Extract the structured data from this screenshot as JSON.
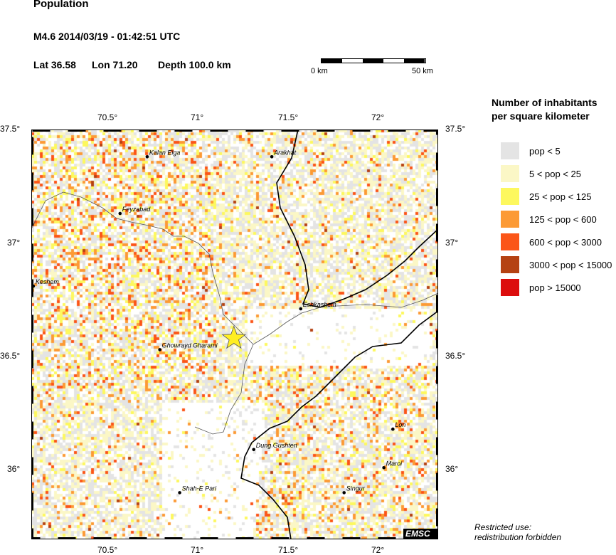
{
  "header": {
    "title": "Population",
    "event": "M4.6  2014/03/19 - 01:42:51 UTC",
    "lat": "Lat 36.58",
    "lon": "Lon  71.20",
    "depth": "Depth 100.0 km"
  },
  "scale_bar": {
    "start": "0 km",
    "end": "50 km"
  },
  "axes": {
    "lon_ticks": [
      "70.5°",
      "71°",
      "71.5°",
      "72°"
    ],
    "lat_ticks": [
      "37.5°",
      "37°",
      "36.5°",
      "36°"
    ]
  },
  "epicenter": {
    "lat": 36.58,
    "lon": 71.2,
    "color": "#ffee22"
  },
  "cities": [
    {
      "name": "Kalan Elga",
      "lon": 70.72,
      "lat": 37.38
    },
    {
      "name": "Arakhat",
      "lon": 71.41,
      "lat": 37.38
    },
    {
      "name": "Feyzabad",
      "lon": 70.57,
      "lat": 37.13
    },
    {
      "name": "Keshem",
      "lon": 70.09,
      "lat": 36.81
    },
    {
      "name": "Eshkashem",
      "lon": 71.57,
      "lat": 36.71
    },
    {
      "name": "Ghowrayd Gharami",
      "lon": 70.79,
      "lat": 36.53
    },
    {
      "name": "Dung Gushten",
      "lon": 71.31,
      "lat": 36.09
    },
    {
      "name": "Lon",
      "lon": 72.08,
      "lat": 36.18
    },
    {
      "name": "Maroi",
      "lon": 72.03,
      "lat": 36.01
    },
    {
      "name": "Singur",
      "lon": 71.81,
      "lat": 35.9
    },
    {
      "name": "Shah-E Pari",
      "lon": 70.9,
      "lat": 35.9
    }
  ],
  "legend": {
    "title_line1": "Number of inhabitants",
    "title_line2": "per square kilometer",
    "items": [
      {
        "label": "pop < 5",
        "color": "#e4e4e4"
      },
      {
        "label": "5 < pop < 25",
        "color": "#fbf7c6"
      },
      {
        "label": "25 < pop < 125",
        "color": "#fdf85e"
      },
      {
        "label": "125 < pop < 600",
        "color": "#fc9a35"
      },
      {
        "label": "600 < pop < 3000",
        "color": "#fb5518"
      },
      {
        "label": "3000 < pop < 15000",
        "color": "#b54213"
      },
      {
        "label": "pop > 15000",
        "color": "#dc0d0d"
      }
    ]
  },
  "footer": {
    "line1": "Restricted use:",
    "line2": "redistribution forbidden",
    "logo": "EMSC"
  }
}
